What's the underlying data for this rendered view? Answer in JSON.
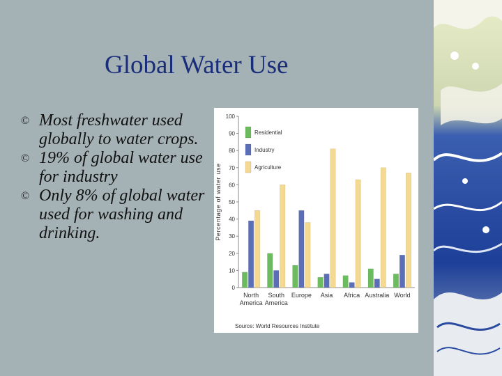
{
  "slide": {
    "title": "Global Water Use",
    "bullets": [
      "Most freshwater used globally to water crops.",
      "19% of global water use for industry",
      "Only 8% of global water used for washing and drinking."
    ],
    "bullet_symbol": "©"
  },
  "colors": {
    "background": "#a5b2b5",
    "title": "#1a2d7a",
    "residential": "#6dbb5f",
    "industry": "#5a6fb8",
    "agriculture": "#f3d991"
  },
  "chart_data": {
    "type": "bar",
    "categories": [
      "North America",
      "South America",
      "Europe",
      "Asia",
      "Africa",
      "Australia",
      "World"
    ],
    "category_lines": [
      [
        "North",
        "America"
      ],
      [
        "South",
        "America"
      ],
      [
        "Europe"
      ],
      [
        "Asia"
      ],
      [
        "Africa"
      ],
      [
        "Australia"
      ],
      [
        "World"
      ]
    ],
    "series": [
      {
        "name": "Residential",
        "color": "#6dbb5f",
        "values": [
          9,
          20,
          13,
          6,
          7,
          11,
          8
        ]
      },
      {
        "name": "Industry",
        "color": "#5a6fb8",
        "values": [
          39,
          10,
          45,
          8,
          3,
          5,
          19
        ]
      },
      {
        "name": "Agriculture",
        "color": "#f3d991",
        "values": [
          45,
          60,
          38,
          81,
          63,
          70,
          67
        ]
      }
    ],
    "ylabel": "Percentage of water use",
    "ylim": [
      0,
      100
    ],
    "yticks": [
      0,
      10,
      20,
      30,
      40,
      50,
      60,
      70,
      80,
      90,
      100
    ],
    "legend_position": "top-left",
    "source": "Source: World Resources Institute"
  }
}
